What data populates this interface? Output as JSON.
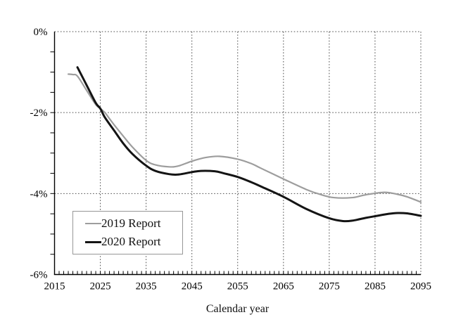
{
  "chart_data": {
    "type": "line",
    "title": "",
    "xlabel": "Calendar year",
    "ylabel": "",
    "xlim": [
      2015,
      2095
    ],
    "ylim": [
      -6,
      0
    ],
    "x_tick_values": [
      2015,
      2025,
      2035,
      2045,
      2055,
      2065,
      2075,
      2085,
      2095
    ],
    "x_tick_labels": [
      "2015",
      "2025",
      "2035",
      "2045",
      "2055",
      "2065",
      "2075",
      "2085",
      "2095"
    ],
    "y_tick_values": [
      0,
      -2,
      -4,
      -6
    ],
    "y_tick_labels": [
      "0%",
      "-2%",
      "-4%",
      "-6%"
    ],
    "grid": {
      "style": "dotted",
      "horizontal_at": [
        0,
        -2,
        -4
      ],
      "vertical_at": [
        2025,
        2035,
        2045,
        2055,
        2065,
        2075,
        2085,
        2095
      ]
    },
    "minor_tick_step": {
      "x": 1,
      "y": 0.5
    },
    "legend": {
      "position": "lower-left"
    },
    "series": [
      {
        "name": "2019 Report",
        "color": "#9d9d9d",
        "stroke_width": 2.2,
        "points": [
          [
            2018,
            -1.05
          ],
          [
            2019,
            -1.06
          ],
          [
            2020,
            -1.1
          ],
          [
            2022,
            -1.45
          ],
          [
            2024,
            -1.8
          ],
          [
            2025,
            -1.9
          ],
          [
            2026,
            -2.0
          ],
          [
            2027,
            -2.15
          ],
          [
            2028,
            -2.3
          ],
          [
            2030,
            -2.58
          ],
          [
            2032,
            -2.85
          ],
          [
            2035,
            -3.18
          ],
          [
            2037,
            -3.29
          ],
          [
            2040,
            -3.34
          ],
          [
            2042,
            -3.32
          ],
          [
            2045,
            -3.2
          ],
          [
            2048,
            -3.11
          ],
          [
            2051,
            -3.08
          ],
          [
            2055,
            -3.15
          ],
          [
            2058,
            -3.26
          ],
          [
            2060,
            -3.37
          ],
          [
            2065,
            -3.64
          ],
          [
            2070,
            -3.9
          ],
          [
            2073,
            -4.02
          ],
          [
            2076,
            -4.1
          ],
          [
            2080,
            -4.1
          ],
          [
            2083,
            -4.03
          ],
          [
            2087,
            -3.97
          ],
          [
            2090,
            -4.02
          ],
          [
            2092,
            -4.08
          ],
          [
            2095,
            -4.21
          ]
        ]
      },
      {
        "name": "2020 Report",
        "color": "#141414",
        "stroke_width": 3,
        "points": [
          [
            2020,
            -0.88
          ],
          [
            2022,
            -1.32
          ],
          [
            2024,
            -1.76
          ],
          [
            2025,
            -1.9
          ],
          [
            2026,
            -2.12
          ],
          [
            2028,
            -2.44
          ],
          [
            2030,
            -2.76
          ],
          [
            2032,
            -3.02
          ],
          [
            2035,
            -3.31
          ],
          [
            2037,
            -3.44
          ],
          [
            2040,
            -3.52
          ],
          [
            2042,
            -3.53
          ],
          [
            2045,
            -3.47
          ],
          [
            2047,
            -3.44
          ],
          [
            2050,
            -3.45
          ],
          [
            2052,
            -3.5
          ],
          [
            2055,
            -3.59
          ],
          [
            2058,
            -3.72
          ],
          [
            2060,
            -3.82
          ],
          [
            2065,
            -4.08
          ],
          [
            2070,
            -4.38
          ],
          [
            2075,
            -4.61
          ],
          [
            2078,
            -4.68
          ],
          [
            2080,
            -4.67
          ],
          [
            2083,
            -4.6
          ],
          [
            2085,
            -4.56
          ],
          [
            2088,
            -4.5
          ],
          [
            2090,
            -4.48
          ],
          [
            2092,
            -4.49
          ],
          [
            2095,
            -4.55
          ]
        ]
      }
    ]
  }
}
